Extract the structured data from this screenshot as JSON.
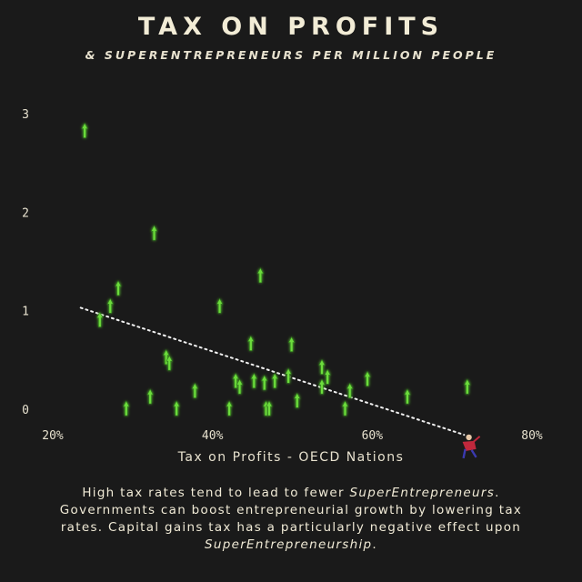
{
  "header": {
    "title": "TAX ON PROFITS",
    "subtitle": "& SUPERENTREPRENEURS PER MILLION PEOPLE"
  },
  "caption": {
    "part1": "High tax rates tend to lead to fewer ",
    "em1": "SuperEntrepreneurs",
    "part2": ". Governments can boost entrepreneurial growth by lowering tax rates. Capital gains tax has a particularly negative effect upon ",
    "em2": "SuperEntrepreneurship",
    "part3": "."
  },
  "colors": {
    "background": "#1a1a1a",
    "point": "#6ddc3c",
    "point_glow": "#2f7d1a",
    "trendline": "#f0f0f0",
    "text": "#e8e2cf",
    "figure_red": "#c0283c",
    "figure_blue": "#3a3ab0"
  },
  "chart_data": {
    "type": "scatter",
    "xlabel": "Tax on Profits - OECD Nations",
    "ylabel": "",
    "xlim": [
      20,
      80
    ],
    "ylim": [
      0,
      3
    ],
    "x_ticks": [
      {
        "value": 20,
        "label": "20%"
      },
      {
        "value": 40,
        "label": "40%"
      },
      {
        "value": 60,
        "label": "60%"
      },
      {
        "value": 80,
        "label": "80%"
      }
    ],
    "y_ticks": [
      {
        "value": 0,
        "label": "0"
      },
      {
        "value": 1,
        "label": "1"
      },
      {
        "value": 2,
        "label": "2"
      },
      {
        "value": 3,
        "label": "3"
      }
    ],
    "point_icon": "green-arrow-icon",
    "grid": false,
    "legend": "none",
    "points": [
      {
        "x": 24.0,
        "y": 2.82
      },
      {
        "x": 25.9,
        "y": 0.9
      },
      {
        "x": 27.2,
        "y": 1.04
      },
      {
        "x": 28.2,
        "y": 1.22
      },
      {
        "x": 29.2,
        "y": 0.0
      },
      {
        "x": 32.2,
        "y": 0.12
      },
      {
        "x": 32.7,
        "y": 1.78
      },
      {
        "x": 34.2,
        "y": 0.52
      },
      {
        "x": 34.6,
        "y": 0.46
      },
      {
        "x": 35.5,
        "y": 0.0
      },
      {
        "x": 37.8,
        "y": 0.18
      },
      {
        "x": 40.9,
        "y": 1.04
      },
      {
        "x": 42.1,
        "y": 0.0
      },
      {
        "x": 42.9,
        "y": 0.28
      },
      {
        "x": 43.4,
        "y": 0.22
      },
      {
        "x": 44.8,
        "y": 0.66
      },
      {
        "x": 45.2,
        "y": 0.28
      },
      {
        "x": 46.0,
        "y": 1.35
      },
      {
        "x": 46.5,
        "y": 0.26
      },
      {
        "x": 46.7,
        "y": 0.0
      },
      {
        "x": 47.1,
        "y": 0.0
      },
      {
        "x": 47.8,
        "y": 0.28
      },
      {
        "x": 49.5,
        "y": 0.33
      },
      {
        "x": 49.9,
        "y": 0.65
      },
      {
        "x": 50.6,
        "y": 0.08
      },
      {
        "x": 53.7,
        "y": 0.42
      },
      {
        "x": 53.7,
        "y": 0.22
      },
      {
        "x": 54.4,
        "y": 0.32
      },
      {
        "x": 56.6,
        "y": 0.0
      },
      {
        "x": 57.2,
        "y": 0.18
      },
      {
        "x": 59.4,
        "y": 0.3
      },
      {
        "x": 64.4,
        "y": 0.12
      },
      {
        "x": 71.9,
        "y": 0.22
      }
    ],
    "trendline": {
      "x": [
        23.5,
        71.5
      ],
      "y": [
        1.03,
        -0.26
      ]
    },
    "figure_point": {
      "x": 72.1,
      "y": -0.35,
      "icon": "superhero-figure-icon"
    }
  }
}
